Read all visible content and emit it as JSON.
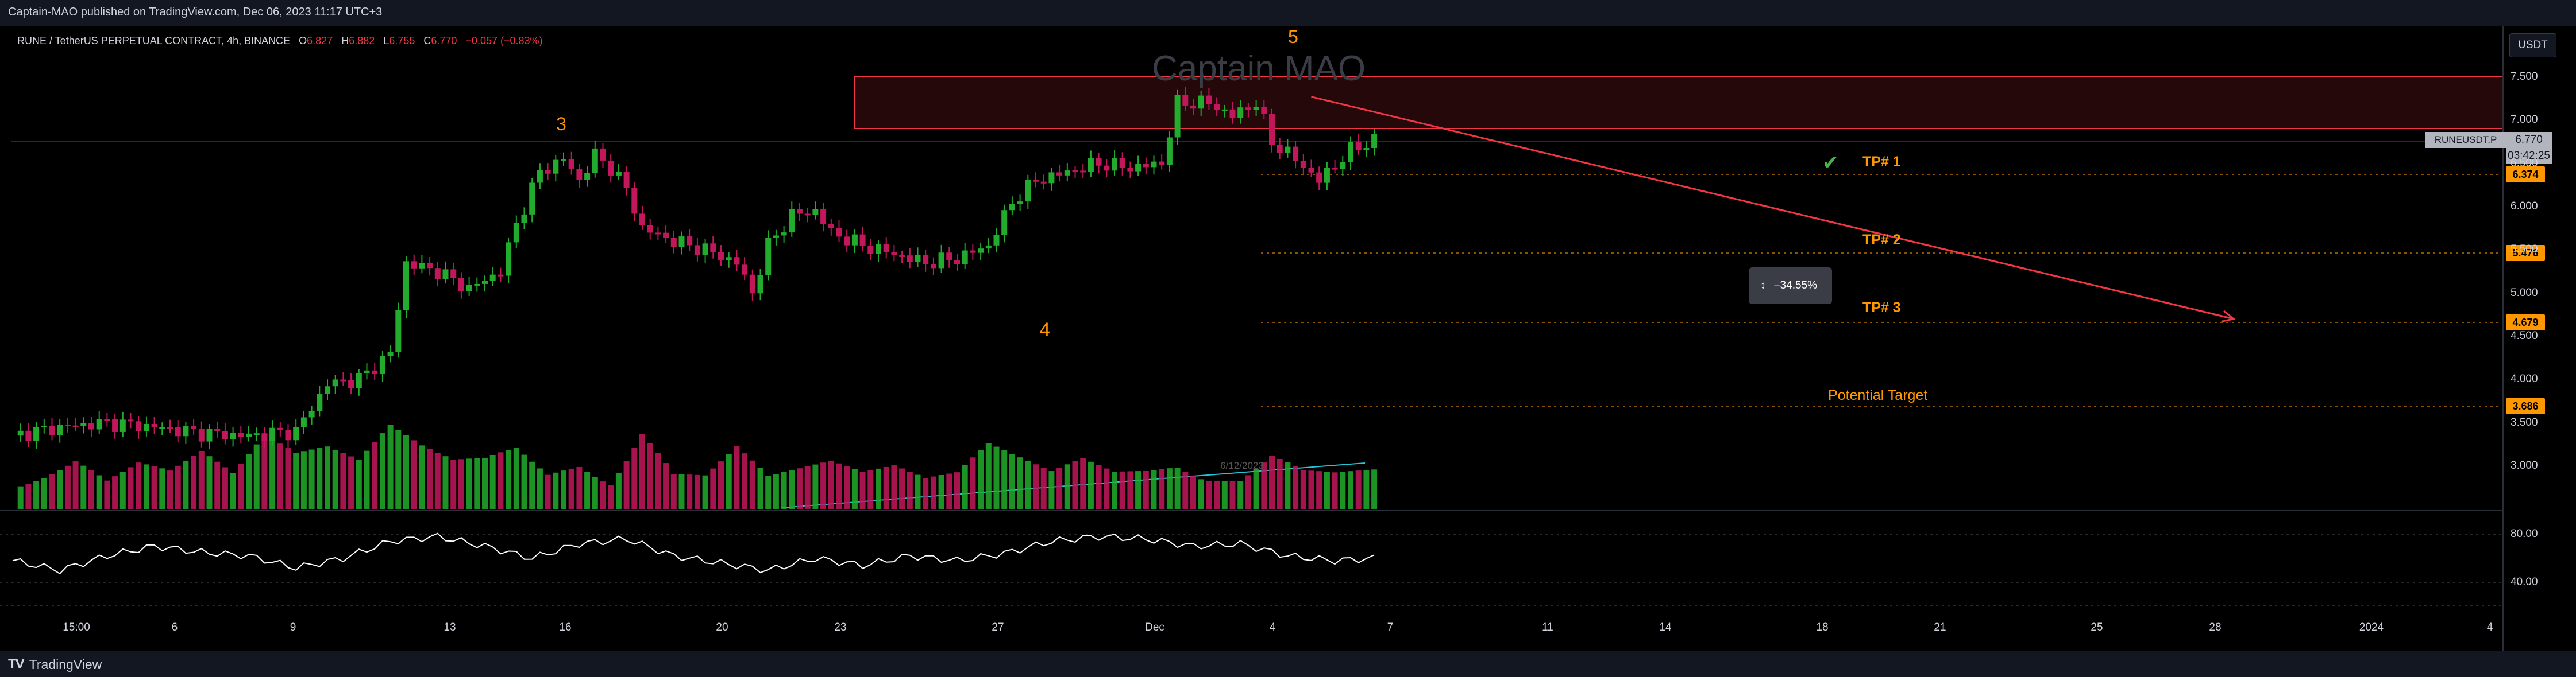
{
  "header": {
    "published": "Captain-MAO published on TradingView.com, Dec 06, 2023 11:17 UTC+3"
  },
  "footer": {
    "brand": "TradingView",
    "brand_mark": "TV"
  },
  "legend": {
    "symbol": "RUNE / TetherUS PERPETUAL CONTRACT, 4h, BINANCE",
    "open_label": "O",
    "open": "6.827",
    "high_label": "H",
    "high": "6.882",
    "low_label": "L",
    "low": "6.755",
    "close_label": "C",
    "close": "6.770",
    "change": "−0.057 (−0.83%)"
  },
  "currency": "USDT",
  "watermark": "Captain MAO",
  "annotations": {
    "wave3": "3",
    "wave4": "4",
    "wave5": "5",
    "tp1": "TP# 1",
    "tp2": "TP# 2",
    "tp3": "TP# 3",
    "potential_target": "Potential Target",
    "measure": "−34.55%",
    "volume_date": "6/12/2023"
  },
  "price_labels": {
    "ticker": "RUNEUSDT.P",
    "last": "6.770",
    "countdown": "03:42:25",
    "tp1": "6.374",
    "tp2": "5.476",
    "tp3": "4.679",
    "potential": "3.686"
  },
  "icons": {
    "check": "check-icon",
    "measure": "measure-icon",
    "logo": "tradingview-logo-icon"
  },
  "colors": {
    "background": "#000000",
    "up": "#22ab2c",
    "down": "#c2185b",
    "zone": "#f23645",
    "accent": "#ff9800",
    "line": "#ffffff"
  },
  "chart_data": {
    "type": "candlestick",
    "timeframe": "4h",
    "y_axis": {
      "ticks": [
        "7.500",
        "7.000",
        "6.500",
        "6.000",
        "5.500",
        "5.000",
        "4.500",
        "4.000",
        "3.500",
        "3.000"
      ],
      "range": [
        2.65,
        7.7
      ]
    },
    "x_axis": {
      "ticks": [
        "15:00",
        "6",
        "9",
        "13",
        "16",
        "20",
        "23",
        "27",
        "Dec",
        "4",
        "7",
        "11",
        "14",
        "18",
        "21",
        "25",
        "28",
        "2024",
        "4"
      ]
    },
    "price_path": [
      [
        0,
        3.35
      ],
      [
        6,
        3.45
      ],
      [
        12,
        3.5
      ],
      [
        18,
        3.45
      ],
      [
        24,
        3.38
      ],
      [
        30,
        3.35
      ],
      [
        36,
        3.4
      ],
      [
        40,
        3.95
      ],
      [
        44,
        4.0
      ],
      [
        48,
        4.3
      ],
      [
        50,
        5.35
      ],
      [
        54,
        5.25
      ],
      [
        58,
        5.05
      ],
      [
        62,
        5.25
      ],
      [
        64,
        5.8
      ],
      [
        67,
        6.4
      ],
      [
        70,
        6.55
      ],
      [
        72,
        6.3
      ],
      [
        74,
        6.6
      ],
      [
        76,
        6.45
      ],
      [
        78,
        6.2
      ],
      [
        80,
        5.75
      ],
      [
        84,
        5.6
      ],
      [
        88,
        5.5
      ],
      [
        92,
        5.35
      ],
      [
        94,
        5.0
      ],
      [
        96,
        5.55
      ],
      [
        99,
        5.9
      ],
      [
        102,
        5.95
      ],
      [
        104,
        5.7
      ],
      [
        108,
        5.55
      ],
      [
        112,
        5.45
      ],
      [
        116,
        5.35
      ],
      [
        120,
        5.4
      ],
      [
        124,
        5.55
      ],
      [
        127,
        6.05
      ],
      [
        130,
        6.3
      ],
      [
        134,
        6.4
      ],
      [
        138,
        6.5
      ],
      [
        142,
        6.45
      ],
      [
        146,
        6.5
      ],
      [
        148,
        7.2
      ],
      [
        152,
        7.2
      ],
      [
        155,
        7.05
      ],
      [
        158,
        7.2
      ],
      [
        160,
        6.75
      ],
      [
        163,
        6.55
      ],
      [
        166,
        6.3
      ],
      [
        170,
        6.65
      ],
      [
        173,
        6.77
      ]
    ],
    "volume_path": [
      [
        0,
        0.3
      ],
      [
        4,
        0.4
      ],
      [
        8,
        0.55
      ],
      [
        12,
        0.3
      ],
      [
        16,
        0.45
      ],
      [
        20,
        0.35
      ],
      [
        24,
        0.5
      ],
      [
        28,
        0.3
      ],
      [
        32,
        0.6
      ],
      [
        36,
        0.45
      ],
      [
        40,
        0.5
      ],
      [
        44,
        0.4
      ],
      [
        48,
        0.7
      ],
      [
        52,
        0.55
      ],
      [
        56,
        0.45
      ],
      [
        60,
        0.5
      ],
      [
        64,
        0.65
      ],
      [
        68,
        0.4
      ],
      [
        72,
        0.55
      ],
      [
        76,
        0.35
      ],
      [
        80,
        0.95
      ],
      [
        84,
        0.4
      ],
      [
        88,
        0.35
      ],
      [
        92,
        0.6
      ],
      [
        96,
        0.3
      ],
      [
        100,
        0.35
      ],
      [
        104,
        0.4
      ],
      [
        108,
        0.3
      ],
      [
        112,
        0.35
      ],
      [
        116,
        0.25
      ],
      [
        120,
        0.3
      ],
      [
        124,
        0.55
      ],
      [
        128,
        0.45
      ],
      [
        132,
        0.35
      ],
      [
        136,
        0.5
      ],
      [
        140,
        0.4
      ],
      [
        144,
        0.45
      ],
      [
        148,
        0.55
      ],
      [
        152,
        0.4
      ],
      [
        156,
        0.35
      ],
      [
        160,
        0.6
      ],
      [
        164,
        0.4
      ],
      [
        168,
        0.35
      ],
      [
        172,
        0.35
      ]
    ],
    "rsi": {
      "ticks": [
        "80.00",
        "40.00"
      ],
      "range": [
        10,
        100
      ]
    },
    "rsi_path": [
      [
        0,
        58
      ],
      [
        6,
        50
      ],
      [
        12,
        62
      ],
      [
        18,
        70
      ],
      [
        24,
        65
      ],
      [
        30,
        62
      ],
      [
        36,
        52
      ],
      [
        42,
        60
      ],
      [
        48,
        74
      ],
      [
        54,
        78
      ],
      [
        60,
        70
      ],
      [
        66,
        60
      ],
      [
        72,
        72
      ],
      [
        78,
        76
      ],
      [
        84,
        62
      ],
      [
        90,
        56
      ],
      [
        96,
        50
      ],
      [
        102,
        60
      ],
      [
        108,
        54
      ],
      [
        114,
        62
      ],
      [
        120,
        58
      ],
      [
        126,
        64
      ],
      [
        132,
        74
      ],
      [
        138,
        78
      ],
      [
        144,
        76
      ],
      [
        150,
        70
      ],
      [
        156,
        72
      ],
      [
        162,
        62
      ],
      [
        168,
        58
      ],
      [
        173,
        60
      ]
    ],
    "levels": {
      "zone_top": 7.5,
      "zone_bottom": 6.88,
      "tp1": 6.374,
      "tp2": 5.476,
      "tp3": 4.679,
      "potential": 3.686
    },
    "projection": {
      "from": [
        165,
        7.27
      ],
      "to": [
        280,
        4.7
      ]
    }
  }
}
